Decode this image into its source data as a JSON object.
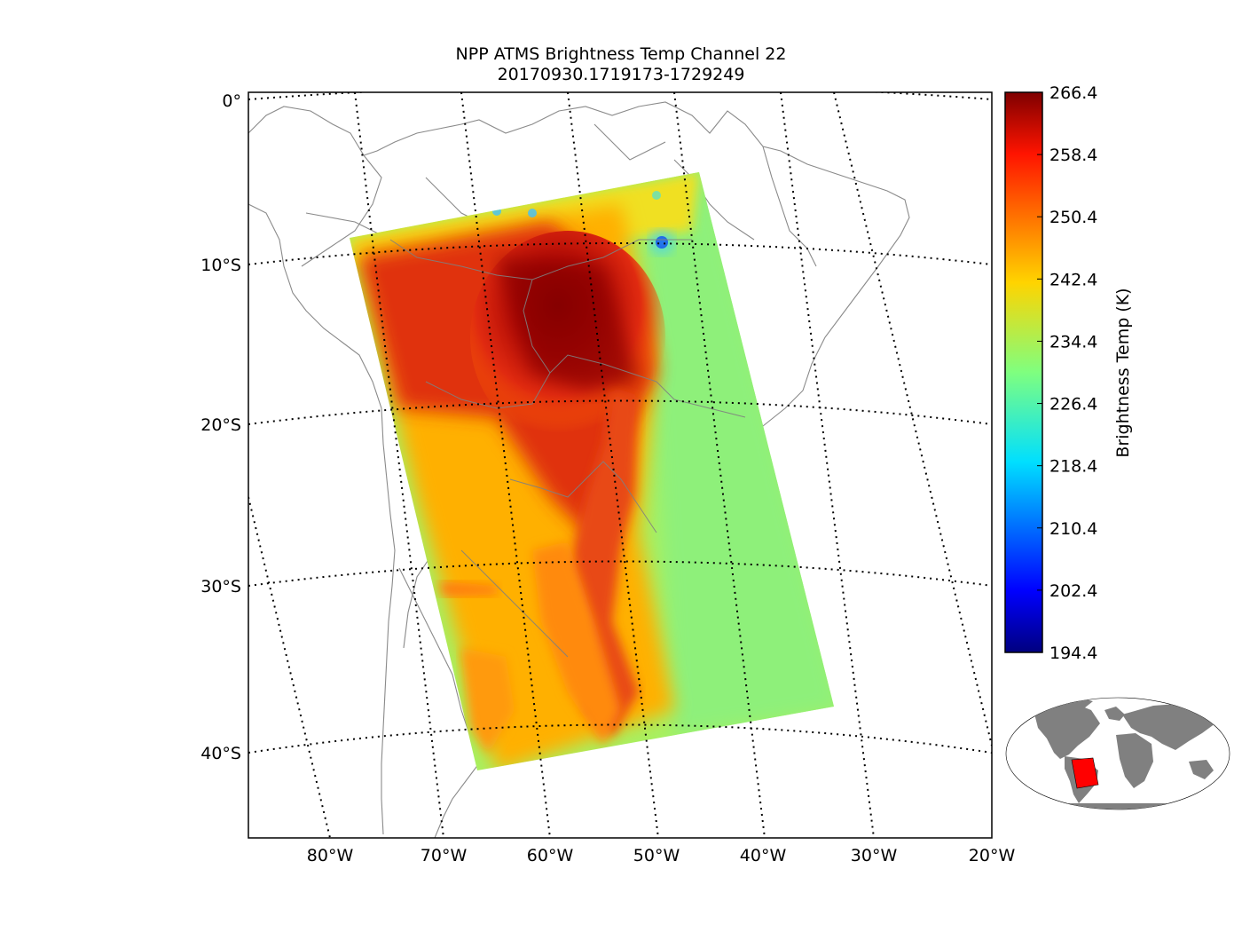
{
  "title": {
    "line1": "NPP ATMS Brightness Temp Channel 22",
    "line2": "20170930.1719173-1729249"
  },
  "map": {
    "lat_labels": [
      "0°",
      "10°S",
      "20°S",
      "30°S",
      "40°S"
    ],
    "lon_labels": [
      "80°W",
      "70°W",
      "60°W",
      "50°W",
      "40°W",
      "30°W",
      "20°W"
    ]
  },
  "colorbar": {
    "label": "Brightness Temp (K)",
    "ticks": [
      "266.4",
      "258.4",
      "250.4",
      "242.4",
      "234.4",
      "226.4",
      "218.4",
      "210.4",
      "202.4",
      "194.4"
    ],
    "min": 194.4,
    "max": 266.4,
    "colormap": "jet"
  },
  "swath_colors": {
    "edge": "#a8f060",
    "dark": "#8b0000",
    "red": "#d42010",
    "orange": "#ff8c00"
  },
  "inset": {
    "land_color": "#808080",
    "highlight_color": "#ff0000"
  }
}
